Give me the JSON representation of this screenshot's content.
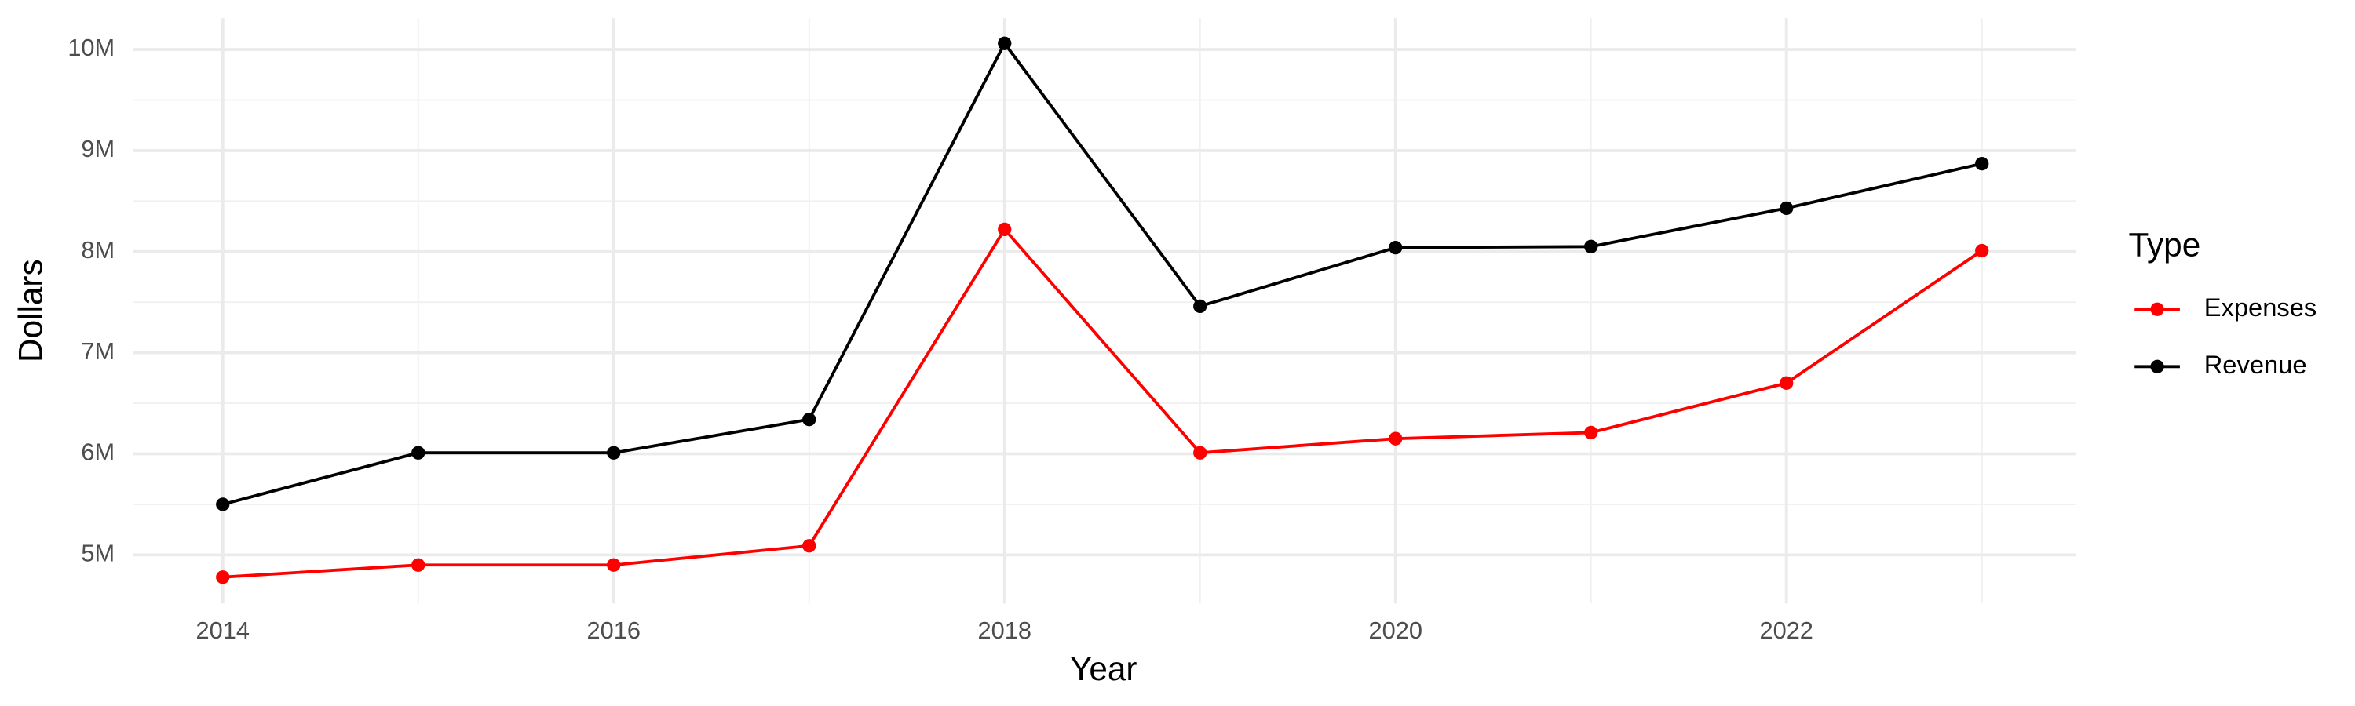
{
  "chart_data": {
    "type": "line",
    "x_label": "Year",
    "y_label": "Dollars",
    "legend_title": "Type",
    "legend": "right",
    "grid": true,
    "x": [
      2014,
      2015,
      2016,
      2017,
      2018,
      2019,
      2020,
      2021,
      2022,
      2023
    ],
    "series": [
      {
        "name": "Expenses",
        "color": "#ff0000",
        "values": [
          4780000,
          4900000,
          4900000,
          5090000,
          8220000,
          6010000,
          6150000,
          6210000,
          6700000,
          8010000
        ]
      },
      {
        "name": "Revenue",
        "color": "#000000",
        "values": [
          5500000,
          6010000,
          6010000,
          6340000,
          10060000,
          7460000,
          8040000,
          8050000,
          8430000,
          8870000
        ]
      }
    ],
    "xlim": [
      2013.54,
      2023.48
    ],
    "xticks": [
      2014,
      2016,
      2018,
      2020,
      2022
    ],
    "ylim": [
      4520000,
      10310000
    ],
    "yticks": [
      {
        "value": 5000000,
        "label": "5M"
      },
      {
        "value": 6000000,
        "label": "6M"
      },
      {
        "value": 7000000,
        "label": "7M"
      },
      {
        "value": 8000000,
        "label": "8M"
      },
      {
        "value": 9000000,
        "label": "9M"
      },
      {
        "value": 10000000,
        "label": "10M"
      }
    ]
  }
}
